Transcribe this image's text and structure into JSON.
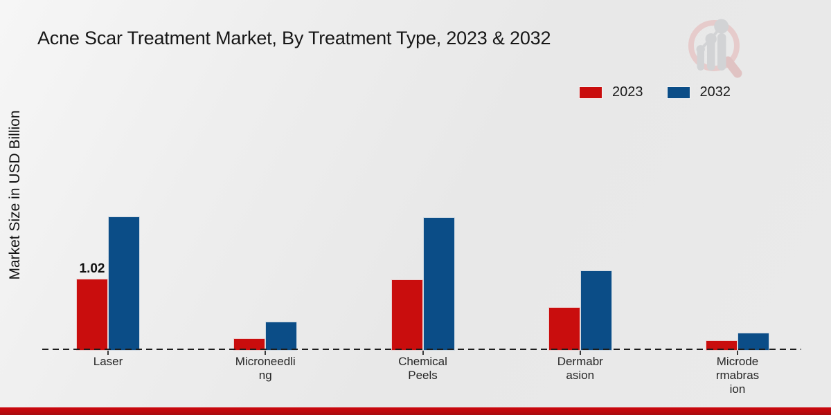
{
  "title": "Acne Scar Treatment Market, By Treatment Type, 2023 & 2032",
  "chart_data": {
    "type": "bar",
    "title": "Acne Scar Treatment Market, By Treatment Type, 2023 & 2032",
    "xlabel": "",
    "ylabel": "Market Size in USD Billion",
    "categories": [
      "Laser",
      "Microneedling",
      "Chemical Peels",
      "Dermabrasion",
      "Microdermabrasion"
    ],
    "category_label_lines": [
      [
        "Laser"
      ],
      [
        "Microneedli",
        "ng"
      ],
      [
        "Chemical",
        "Peels"
      ],
      [
        "Dermabr",
        "asion"
      ],
      [
        "Microde",
        "rmabras",
        "ion"
      ]
    ],
    "series": [
      {
        "name": "2023",
        "color": "#c90d0d",
        "values": [
          1.02,
          0.18,
          1.01,
          0.62,
          0.15
        ]
      },
      {
        "name": "2032",
        "color": "#0b4d87",
        "values": [
          1.91,
          0.41,
          1.9,
          1.14,
          0.26
        ]
      }
    ],
    "bar_labels": [
      {
        "series": "2023",
        "category": "Laser",
        "text": "1.02"
      }
    ],
    "ylim": [
      0,
      2.2
    ],
    "grid": false,
    "legend_position": "top-right",
    "baseline_style": "dashed",
    "units": "USD Billion"
  },
  "legend": {
    "items": [
      {
        "label": "2023",
        "color": "#c90d0d"
      },
      {
        "label": "2032",
        "color": "#0b4d87"
      }
    ]
  },
  "branding": {
    "logo_name": "magnifier-bar-chart-logo",
    "footer_bar_color": "#bd0a0e"
  }
}
